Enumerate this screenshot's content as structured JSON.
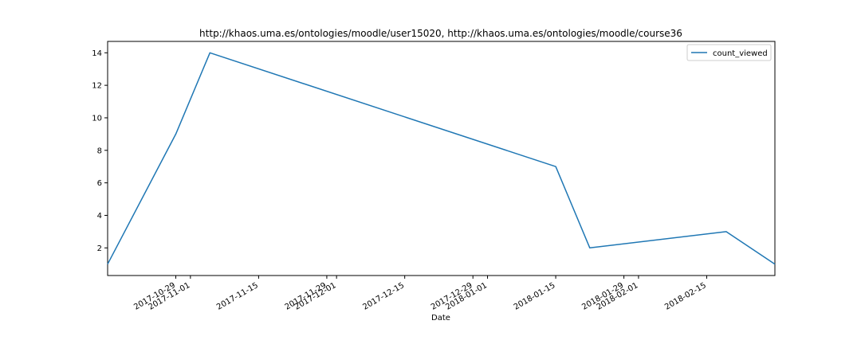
{
  "chart_data": {
    "type": "line",
    "title": "http://khaos.uma.es/ontologies/moodle/user15020, http://khaos.uma.es/ontologies/moodle/course36",
    "xlabel": "Date",
    "ylabel": "",
    "x_scale": "date",
    "xlim": [
      "2017-10-15",
      "2018-03-01"
    ],
    "ylim": [
      0.3,
      14.7
    ],
    "grid": false,
    "legend_position": "upper right",
    "y_ticks": [
      2,
      4,
      6,
      8,
      10,
      12,
      14
    ],
    "x_ticks": [
      "2017-10-29",
      "2017-11-01",
      "2017-11-15",
      "2017-11-29",
      "2017-12-01",
      "2017-12-15",
      "2017-12-29",
      "2018-01-01",
      "2018-01-15",
      "2018-01-29",
      "2018-02-01",
      "2018-02-15"
    ],
    "series": [
      {
        "name": "count_viewed",
        "color": "#1f77b4",
        "x": [
          "2017-10-15",
          "2017-10-29",
          "2017-11-05",
          "2018-01-15",
          "2018-01-22",
          "2018-02-19",
          "2018-03-01"
        ],
        "y": [
          1,
          9,
          14,
          7,
          2,
          3,
          1
        ]
      }
    ]
  }
}
